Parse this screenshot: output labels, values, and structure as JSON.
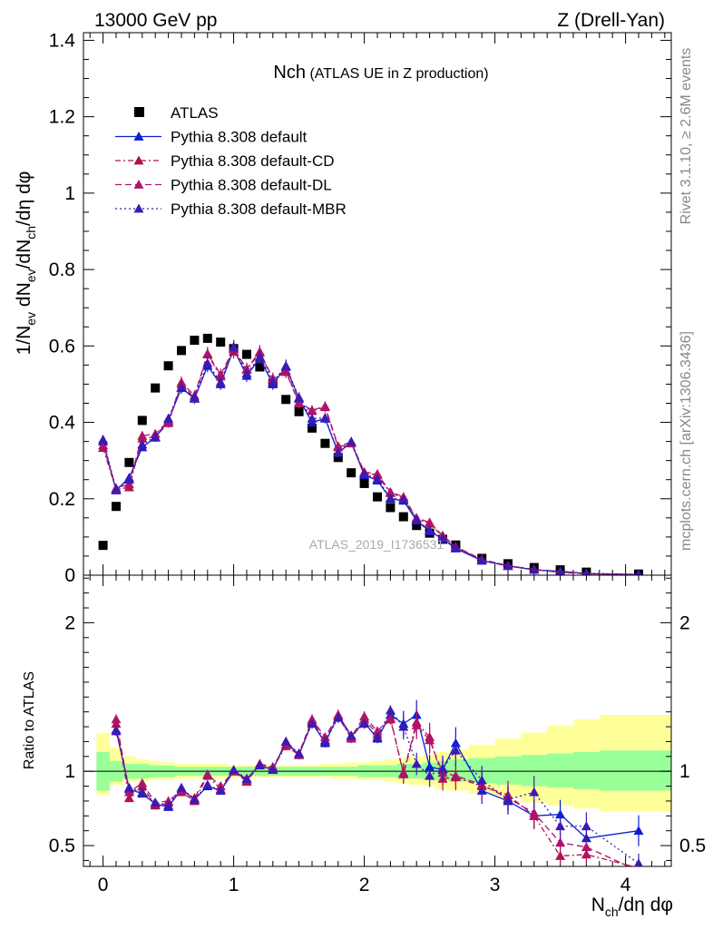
{
  "header": {
    "left": "13000 GeV pp",
    "right": "Z (Drell-Yan)"
  },
  "plot_title": {
    "main": "Nch",
    "sub": "(ATLAS UE in Z production)"
  },
  "side_labels": {
    "rivet": "Rivet 3.1.10, ≥ 2.6M events",
    "mcplots": "mcplots.cern.ch [arXiv:1306.3436]"
  },
  "watermark": "ATLAS_2019_I1736531",
  "colors": {
    "data": "#000000",
    "default": "#0a1ed6",
    "cd": "#b0134e",
    "dl": "#b0136c",
    "mbr": "#3c1ab4",
    "band_inner": "#99ff99",
    "band_outer": "#ffff99"
  },
  "chart_data": [
    {
      "type": "scatter",
      "title": "Nch (ATLAS UE in Z production)",
      "ylabel": "1/N_ev dN_ev/dN_ch/dη dφ",
      "xlabel": "",
      "xlim": [
        -0.15,
        4.35
      ],
      "ylim": [
        0,
        1.42
      ],
      "x_ticks": [
        "0",
        "1",
        "2",
        "3",
        "4"
      ],
      "y_ticks": [
        "0",
        "0.2",
        "0.4",
        "0.6",
        "0.8",
        "1",
        "1.2",
        "1.4"
      ],
      "legend_position": "top-left",
      "x": [
        0,
        0.1,
        0.2,
        0.3,
        0.4,
        0.5,
        0.6,
        0.7,
        0.8,
        0.9,
        1.0,
        1.1,
        1.2,
        1.3,
        1.4,
        1.5,
        1.6,
        1.7,
        1.8,
        1.9,
        2.0,
        2.1,
        2.2,
        2.3,
        2.4,
        2.5,
        2.6,
        2.7,
        2.9,
        3.1,
        3.3,
        3.5,
        3.7,
        4.1
      ],
      "series": [
        {
          "name": "ATLAS",
          "style": "data",
          "values": [
            0.078,
            0.18,
            0.295,
            0.405,
            0.49,
            0.548,
            0.588,
            0.615,
            0.62,
            0.61,
            0.593,
            0.578,
            0.545,
            0.502,
            0.46,
            0.428,
            0.385,
            0.345,
            0.308,
            0.268,
            0.24,
            0.205,
            0.177,
            0.153,
            0.13,
            0.11,
            0.094,
            0.079,
            0.044,
            0.03,
            0.02,
            0.014,
            0.008,
            0.003
          ]
        },
        {
          "name": "Pythia 8.308 default",
          "style": "default",
          "values": [
            0.35,
            0.222,
            0.255,
            0.335,
            0.36,
            0.405,
            0.49,
            0.462,
            0.548,
            0.5,
            0.592,
            0.522,
            0.568,
            0.5,
            0.545,
            0.462,
            0.4,
            0.41,
            0.32,
            0.348,
            0.262,
            0.248,
            0.2,
            0.195,
            0.143,
            0.115,
            0.095,
            0.07,
            0.038,
            0.024,
            0.014,
            0.01,
            0.004,
            0.002
          ]
        },
        {
          "name": "Pythia 8.308 default-CD",
          "style": "cd",
          "values": [
            0.333,
            0.224,
            0.23,
            0.358,
            0.362,
            0.398,
            0.5,
            0.463,
            0.578,
            0.52,
            0.585,
            0.538,
            0.582,
            0.512,
            0.532,
            0.45,
            0.43,
            0.44,
            0.335,
            0.345,
            0.268,
            0.262,
            0.215,
            0.202,
            0.148,
            0.135,
            0.102,
            0.073,
            0.04,
            0.025,
            0.015,
            0.008,
            0.004,
            0.001
          ]
        },
        {
          "name": "Pythia 8.308 default-DL",
          "style": "dl",
          "values": [
            0.34,
            0.228,
            0.238,
            0.365,
            0.37,
            0.402,
            0.505,
            0.47,
            0.58,
            0.525,
            0.592,
            0.54,
            0.585,
            0.515,
            0.535,
            0.452,
            0.432,
            0.442,
            0.338,
            0.348,
            0.27,
            0.265,
            0.218,
            0.205,
            0.15,
            0.138,
            0.104,
            0.075,
            0.041,
            0.025,
            0.015,
            0.007,
            0.004,
            0.001
          ]
        },
        {
          "name": "Pythia 8.308 default-MBR",
          "style": "mbr",
          "values": [
            0.355,
            0.225,
            0.25,
            0.342,
            0.362,
            0.41,
            0.492,
            0.465,
            0.555,
            0.505,
            0.598,
            0.528,
            0.572,
            0.505,
            0.548,
            0.465,
            0.41,
            0.412,
            0.322,
            0.35,
            0.265,
            0.252,
            0.202,
            0.198,
            0.145,
            0.118,
            0.097,
            0.072,
            0.039,
            0.024,
            0.014,
            0.01,
            0.005,
            0.002
          ]
        }
      ]
    },
    {
      "type": "line",
      "ylabel": "Ratio to ATLAS",
      "xlabel": "N_ch/dη dφ",
      "xlim": [
        -0.15,
        4.35
      ],
      "ylim": [
        0.36,
        2.32
      ],
      "x_ticks": [
        "0",
        "1",
        "2",
        "3",
        "4"
      ],
      "y_ticks": [
        "0.5",
        "1",
        "2"
      ],
      "reference_line": 1,
      "bands": {
        "x_edges": [
          -0.05,
          0.05,
          0.15,
          0.25,
          0.35,
          0.45,
          0.55,
          0.65,
          0.75,
          0.85,
          0.95,
          1.05,
          1.15,
          1.25,
          1.35,
          1.45,
          1.55,
          1.65,
          1.75,
          1.85,
          1.95,
          2.05,
          2.15,
          2.25,
          2.35,
          2.45,
          2.55,
          2.65,
          2.8,
          3.0,
          3.2,
          3.4,
          3.6,
          3.8,
          4.35
        ],
        "inner_low": [
          0.87,
          0.93,
          0.95,
          0.95,
          0.96,
          0.96,
          0.97,
          0.97,
          0.97,
          0.97,
          0.97,
          0.97,
          0.97,
          0.97,
          0.97,
          0.97,
          0.97,
          0.97,
          0.97,
          0.97,
          0.96,
          0.96,
          0.96,
          0.95,
          0.95,
          0.94,
          0.94,
          0.93,
          0.92,
          0.91,
          0.9,
          0.89,
          0.88,
          0.87
        ],
        "inner_high": [
          1.13,
          1.07,
          1.05,
          1.05,
          1.04,
          1.04,
          1.03,
          1.03,
          1.03,
          1.03,
          1.03,
          1.03,
          1.03,
          1.03,
          1.03,
          1.03,
          1.03,
          1.03,
          1.03,
          1.03,
          1.04,
          1.04,
          1.04,
          1.05,
          1.05,
          1.06,
          1.07,
          1.08,
          1.09,
          1.1,
          1.11,
          1.12,
          1.13,
          1.14
        ],
        "outer_low": [
          0.84,
          0.91,
          0.93,
          0.93,
          0.94,
          0.94,
          0.95,
          0.95,
          0.95,
          0.95,
          0.96,
          0.96,
          0.96,
          0.96,
          0.96,
          0.96,
          0.96,
          0.96,
          0.95,
          0.95,
          0.94,
          0.94,
          0.93,
          0.92,
          0.91,
          0.9,
          0.88,
          0.87,
          0.85,
          0.82,
          0.79,
          0.77,
          0.75,
          0.73
        ],
        "outer_high": [
          1.26,
          1.16,
          1.1,
          1.08,
          1.07,
          1.06,
          1.05,
          1.05,
          1.05,
          1.05,
          1.04,
          1.04,
          1.04,
          1.04,
          1.04,
          1.04,
          1.04,
          1.05,
          1.05,
          1.06,
          1.06,
          1.07,
          1.08,
          1.09,
          1.1,
          1.11,
          1.13,
          1.15,
          1.18,
          1.22,
          1.26,
          1.31,
          1.35,
          1.38
        ]
      },
      "x": [
        0.1,
        0.2,
        0.3,
        0.4,
        0.5,
        0.6,
        0.7,
        0.8,
        0.9,
        1.0,
        1.1,
        1.2,
        1.3,
        1.4,
        1.5,
        1.6,
        1.7,
        1.8,
        1.9,
        2.0,
        2.1,
        2.2,
        2.3,
        2.4,
        2.5,
        2.6,
        2.7,
        2.9,
        3.1,
        3.3,
        3.5,
        3.7,
        4.1
      ],
      "series": [
        {
          "name": "Pythia 8.308 default",
          "style": "default",
          "values": [
            1.28,
            0.88,
            0.85,
            0.78,
            0.76,
            0.88,
            0.81,
            0.9,
            0.87,
            1.0,
            0.95,
            1.04,
            1.01,
            1.2,
            1.11,
            1.33,
            1.19,
            1.38,
            1.24,
            1.33,
            1.22,
            1.38,
            1.32,
            1.38,
            1.03,
            1.01,
            1.19,
            0.87,
            0.8,
            0.7,
            0.71,
            0.55,
            0.6
          ]
        },
        {
          "name": "Pythia 8.308 default-CD",
          "style": "cd",
          "values": [
            1.32,
            0.82,
            0.9,
            0.77,
            0.79,
            0.86,
            0.8,
            0.97,
            0.88,
            1.0,
            0.93,
            1.05,
            1.02,
            1.17,
            1.11,
            1.34,
            1.21,
            1.37,
            1.22,
            1.35,
            1.25,
            1.35,
            0.99,
            1.33,
            1.23,
            0.95,
            0.96,
            0.9,
            0.84,
            0.7,
            0.43,
            0.44,
            0.35
          ]
        },
        {
          "name": "Pythia 8.308 default-DL",
          "style": "dl",
          "values": [
            1.35,
            0.86,
            0.92,
            0.79,
            0.8,
            0.87,
            0.82,
            0.98,
            0.9,
            1.0,
            0.94,
            1.05,
            1.03,
            1.18,
            1.12,
            1.35,
            1.23,
            1.38,
            1.23,
            1.37,
            1.27,
            1.36,
            0.98,
            1.31,
            1.21,
            0.99,
            0.97,
            0.91,
            0.82,
            0.72,
            0.52,
            0.49,
            0.33
          ]
        },
        {
          "name": "Pythia 8.308 default-MBR",
          "style": "mbr",
          "values": [
            1.27,
            0.89,
            0.86,
            0.79,
            0.77,
            0.89,
            0.81,
            0.91,
            0.87,
            1.01,
            0.95,
            1.04,
            1.01,
            1.2,
            1.12,
            1.32,
            1.2,
            1.36,
            1.24,
            1.32,
            1.23,
            1.41,
            1.3,
            1.05,
            0.97,
            1.02,
            1.14,
            0.94,
            0.81,
            0.86,
            0.63,
            0.63,
            0.38
          ]
        }
      ]
    }
  ]
}
